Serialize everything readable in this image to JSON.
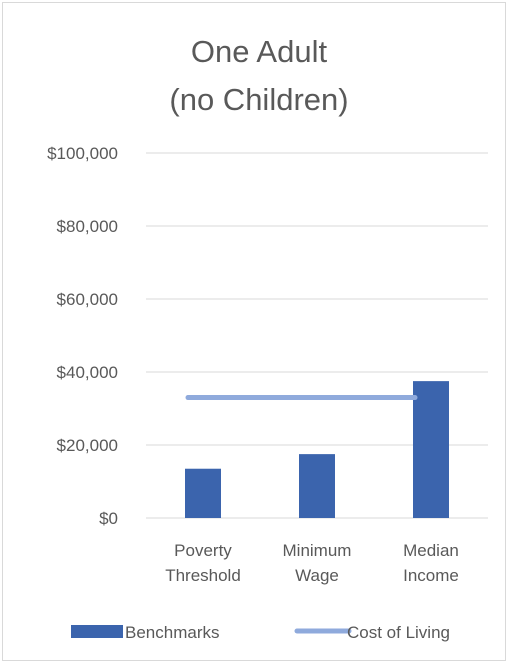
{
  "chart_data": {
    "type": "bar",
    "title": [
      "One Adult",
      "(no  Children)"
    ],
    "categories": [
      [
        "Poverty",
        "Threshold"
      ],
      [
        "Minimum",
        "Wage"
      ],
      [
        "Median",
        "Income"
      ]
    ],
    "series": [
      {
        "name": "Benchmarks",
        "type": "bar",
        "values": [
          13500,
          17500,
          37500
        ],
        "color": "#3b64ad"
      },
      {
        "name": "Cost of Living",
        "type": "line",
        "values": [
          33000,
          33000,
          33000
        ],
        "color": "#8faadc"
      }
    ],
    "ylim": [
      0,
      100000
    ],
    "yticks": [
      {
        "value": 100000,
        "label": "$100,000"
      },
      {
        "value": 80000,
        "label": "$80,000"
      },
      {
        "value": 60000,
        "label": "$60,000"
      },
      {
        "value": 40000,
        "label": "$40,000"
      },
      {
        "value": 20000,
        "label": "$20,000"
      },
      {
        "value": 0,
        "label": "$0"
      }
    ],
    "grid": true,
    "legend_position": "bottom",
    "gridline_color": "#d9d9d9"
  }
}
